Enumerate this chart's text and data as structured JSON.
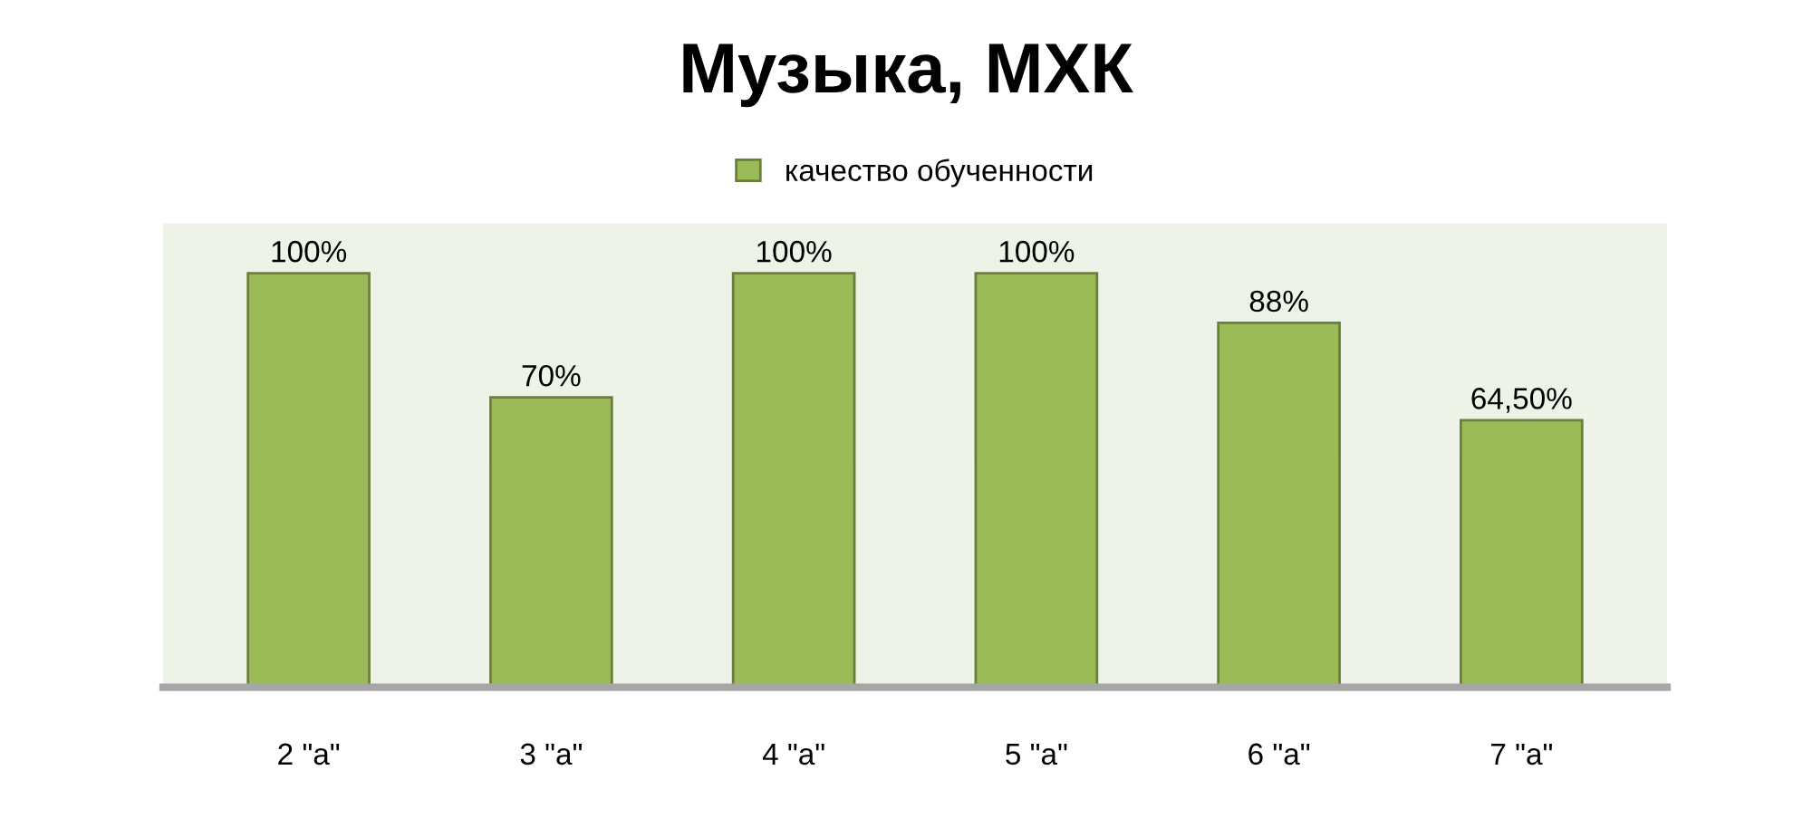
{
  "chart_data": {
    "type": "bar",
    "title": "Музыка, МХК",
    "categories": [
      "2 \"а\"",
      "3 \"а\"",
      "4 \"а\"",
      "5 \"а\"",
      "6 \"а\"",
      "7 \"а\""
    ],
    "series": [
      {
        "name": "качество обученности",
        "color": "#9bbb59",
        "values": [
          100,
          70,
          100,
          100,
          88,
          64.5
        ],
        "value_labels": [
          "100%",
          "70%",
          "100%",
          "100%",
          "88%",
          "64,50%"
        ]
      }
    ],
    "legend": "top",
    "grid": false
  }
}
